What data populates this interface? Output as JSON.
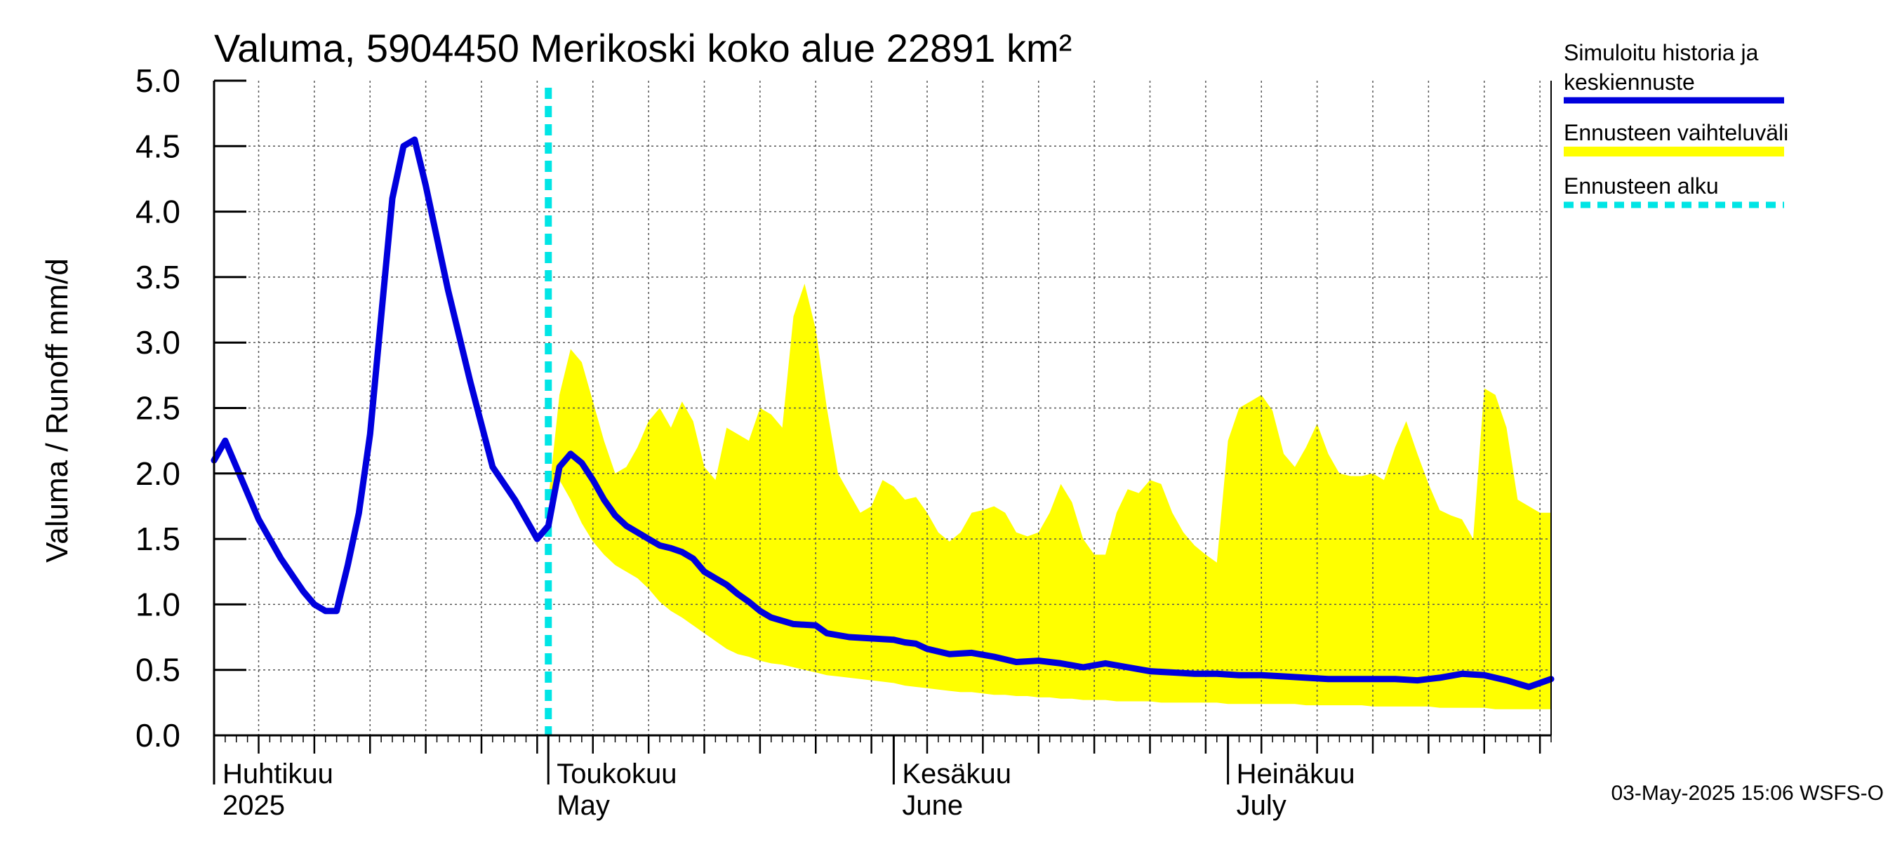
{
  "chart_data": {
    "type": "line",
    "title": "Valuma, 5904450 Merikoski koko alue 22891 km²",
    "ylabel": "Valuma / Runoff    mm/d",
    "ylim": [
      0,
      5
    ],
    "y_ticks": [
      "0.0",
      "0.5",
      "1.0",
      "1.5",
      "2.0",
      "2.5",
      "3.0",
      "3.5",
      "4.0",
      "4.5",
      "5.0"
    ],
    "x_range_days": [
      0,
      120
    ],
    "forecast_start_day": 30,
    "month_labels": [
      {
        "day": 0,
        "line1": "Huhtikuu",
        "line2": "2025"
      },
      {
        "day": 30,
        "line1": "Toukokuu",
        "line2": "May"
      },
      {
        "day": 61,
        "line1": "Kesäkuu",
        "line2": "June"
      },
      {
        "day": 91,
        "line1": "Heinäkuu",
        "line2": "July"
      }
    ],
    "legend": {
      "history_line1": "Simuloitu historia ja",
      "history_line2": "keskiennuste",
      "range": "Ennusteen vaihteluväli",
      "start": "Ennusteen alku"
    },
    "colors": {
      "history": "#0000dd",
      "range": "#ffff00",
      "start": "#00e5e5",
      "grid": "#555555"
    },
    "history": {
      "x": [
        0,
        1,
        2,
        4,
        6,
        8,
        9,
        10,
        11,
        12,
        13,
        14,
        15,
        16,
        17,
        18,
        19,
        21,
        23,
        25,
        27,
        28,
        29,
        30,
        31,
        32
      ],
      "y": [
        2.1,
        2.25,
        2.05,
        1.65,
        1.35,
        1.1,
        1.0,
        0.95,
        0.95,
        1.3,
        1.7,
        2.3,
        3.2,
        4.1,
        4.5,
        4.55,
        4.2,
        3.4,
        2.7,
        2.05,
        1.8,
        1.65,
        1.5,
        1.6,
        2.05,
        2.15
      ]
    },
    "median": {
      "x": [
        32,
        33,
        34,
        35,
        36,
        37,
        38,
        39,
        40,
        41,
        42,
        43,
        44,
        45,
        46,
        47,
        48,
        49,
        50,
        52,
        54,
        55,
        57,
        59,
        61,
        62,
        63,
        64,
        66,
        68,
        70,
        72,
        74,
        76,
        78,
        80,
        82,
        84,
        86,
        88,
        90,
        92,
        94,
        96,
        98,
        100,
        102,
        104,
        106,
        108,
        110,
        112,
        114,
        116,
        118,
        120
      ],
      "y": [
        2.15,
        2.08,
        1.95,
        1.8,
        1.68,
        1.6,
        1.55,
        1.5,
        1.45,
        1.43,
        1.4,
        1.35,
        1.25,
        1.2,
        1.15,
        1.08,
        1.02,
        0.95,
        0.9,
        0.85,
        0.84,
        0.78,
        0.75,
        0.74,
        0.73,
        0.71,
        0.7,
        0.66,
        0.62,
        0.63,
        0.6,
        0.56,
        0.57,
        0.55,
        0.52,
        0.55,
        0.52,
        0.49,
        0.48,
        0.47,
        0.47,
        0.46,
        0.46,
        0.45,
        0.44,
        0.43,
        0.43,
        0.43,
        0.43,
        0.42,
        0.44,
        0.47,
        0.46,
        0.42,
        0.37,
        0.43
      ]
    },
    "range_band": {
      "x": [
        30,
        31,
        32,
        33,
        34,
        35,
        36,
        37,
        38,
        39,
        40,
        41,
        42,
        43,
        44,
        45,
        46,
        47,
        48,
        49,
        50,
        51,
        52,
        53,
        54,
        55,
        56,
        57,
        58,
        59,
        60,
        61,
        62,
        63,
        64,
        65,
        66,
        67,
        68,
        69,
        70,
        71,
        72,
        73,
        74,
        75,
        76,
        77,
        78,
        79,
        80,
        81,
        82,
        83,
        84,
        85,
        86,
        87,
        88,
        89,
        90,
        91,
        92,
        93,
        94,
        95,
        96,
        97,
        98,
        99,
        100,
        101,
        102,
        103,
        104,
        105,
        106,
        107,
        108,
        109,
        110,
        111,
        112,
        113,
        114,
        115,
        116,
        117,
        118,
        119,
        120
      ],
      "upper": [
        1.8,
        2.6,
        2.95,
        2.85,
        2.55,
        2.25,
        2.0,
        2.05,
        2.2,
        2.4,
        2.5,
        2.35,
        2.55,
        2.4,
        2.05,
        1.95,
        2.35,
        2.3,
        2.25,
        2.5,
        2.45,
        2.35,
        3.2,
        3.45,
        3.1,
        2.5,
        2.0,
        1.85,
        1.7,
        1.75,
        1.95,
        1.9,
        1.8,
        1.82,
        1.7,
        1.55,
        1.48,
        1.55,
        1.7,
        1.72,
        1.75,
        1.7,
        1.55,
        1.52,
        1.55,
        1.7,
        1.92,
        1.78,
        1.5,
        1.38,
        1.38,
        1.7,
        1.88,
        1.85,
        1.95,
        1.92,
        1.7,
        1.55,
        1.45,
        1.38,
        1.32,
        2.25,
        2.5,
        2.55,
        2.6,
        2.48,
        2.15,
        2.05,
        2.2,
        2.38,
        2.15,
        2.0,
        1.98,
        1.98,
        2.0,
        1.95,
        2.2,
        2.4,
        2.15,
        1.92,
        1.72,
        1.68,
        1.65,
        1.5,
        2.65,
        2.6,
        2.35,
        1.8,
        1.75,
        1.7,
        1.7
      ],
      "lower": [
        1.8,
        1.95,
        1.8,
        1.62,
        1.48,
        1.38,
        1.3,
        1.25,
        1.2,
        1.12,
        1.02,
        0.95,
        0.9,
        0.84,
        0.78,
        0.72,
        0.66,
        0.62,
        0.6,
        0.57,
        0.55,
        0.54,
        0.52,
        0.5,
        0.48,
        0.46,
        0.45,
        0.44,
        0.43,
        0.42,
        0.41,
        0.4,
        0.38,
        0.37,
        0.36,
        0.35,
        0.34,
        0.33,
        0.33,
        0.32,
        0.31,
        0.31,
        0.3,
        0.3,
        0.29,
        0.29,
        0.28,
        0.28,
        0.27,
        0.27,
        0.27,
        0.26,
        0.26,
        0.26,
        0.26,
        0.25,
        0.25,
        0.25,
        0.25,
        0.25,
        0.25,
        0.24,
        0.24,
        0.24,
        0.24,
        0.24,
        0.24,
        0.24,
        0.23,
        0.23,
        0.23,
        0.23,
        0.23,
        0.23,
        0.22,
        0.22,
        0.22,
        0.22,
        0.22,
        0.22,
        0.21,
        0.21,
        0.21,
        0.21,
        0.21,
        0.2,
        0.2,
        0.2,
        0.2,
        0.2,
        0.2
      ]
    }
  },
  "timestamp": "03-May-2025 15:06 WSFS-O"
}
